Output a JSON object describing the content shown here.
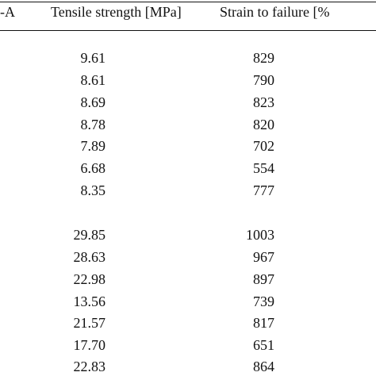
{
  "table": {
    "headers": [
      "-A",
      "Tensile strength [MPa]",
      "Strain to failure [%"
    ],
    "groups": [
      {
        "rows": [
          {
            "tensile": "9.61",
            "strain": "829"
          },
          {
            "tensile": "8.61",
            "strain": "790"
          },
          {
            "tensile": "8.69",
            "strain": "823"
          },
          {
            "tensile": "8.78",
            "strain": "820"
          },
          {
            "tensile": "7.89",
            "strain": "702"
          },
          {
            "tensile": "6.68",
            "strain": "554"
          },
          {
            "tensile": "8.35",
            "strain": "777"
          }
        ]
      },
      {
        "rows": [
          {
            "tensile": "29.85",
            "strain": "1003"
          },
          {
            "tensile": "28.63",
            "strain": "967"
          },
          {
            "tensile": "22.98",
            "strain": "897"
          },
          {
            "tensile": "13.56",
            "strain": "739"
          },
          {
            "tensile": "21.57",
            "strain": "817"
          },
          {
            "tensile": "17.70",
            "strain": "651"
          },
          {
            "tensile": "22.83",
            "strain": "864"
          }
        ]
      }
    ]
  }
}
